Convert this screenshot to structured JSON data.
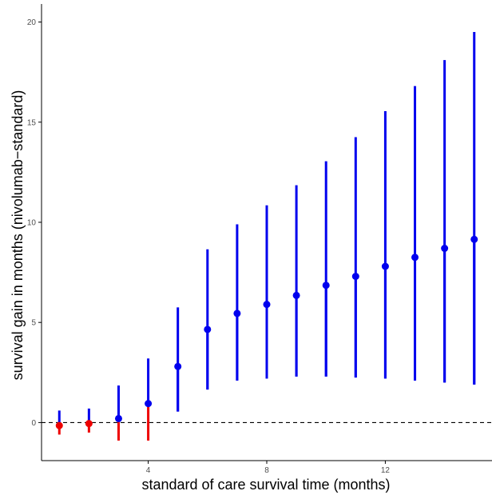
{
  "chart_data": {
    "type": "scatter",
    "xlabel": "standard of care survival time (months)",
    "ylabel": "survival gain in months (nivolumab−standard)",
    "xlim": [
      0.4,
      15.6
    ],
    "ylim": [
      -1.9,
      20.9
    ],
    "x_ticks": [
      4,
      8,
      12
    ],
    "y_ticks": [
      0,
      5,
      10,
      15,
      20
    ],
    "reference_line": {
      "y": 0,
      "style": "dashed"
    },
    "grid": false,
    "colors": {
      "positive": "#0000ee",
      "negative": "#ee0000",
      "axis": "#000000",
      "tick_text": "#4d4d4d"
    },
    "points": [
      {
        "x": 1,
        "y": -0.15,
        "upper_low": -0.15,
        "upper_high": 0.6,
        "lower_low": -0.6,
        "lower_high": -0.15
      },
      {
        "x": 2,
        "y": -0.05,
        "upper_low": -0.05,
        "upper_high": 0.7,
        "lower_low": -0.5,
        "lower_high": -0.05
      },
      {
        "x": 3,
        "y": 0.2,
        "upper_low": 0.2,
        "upper_high": 1.85,
        "lower_low": -0.9,
        "lower_high": 0.2
      },
      {
        "x": 4,
        "y": 0.95,
        "upper_low": 0.95,
        "upper_high": 3.2,
        "lower_low": -0.9,
        "lower_high": 0.95
      },
      {
        "x": 5,
        "y": 2.8,
        "upper_low": 0.55,
        "upper_high": 5.75,
        "lower_low": 0.55,
        "lower_high": 2.8
      },
      {
        "x": 6,
        "y": 4.65,
        "upper_low": 1.65,
        "upper_high": 8.65,
        "lower_low": 1.65,
        "lower_high": 4.65
      },
      {
        "x": 7,
        "y": 5.45,
        "upper_low": 2.1,
        "upper_high": 9.9,
        "lower_low": 2.1,
        "lower_high": 5.45
      },
      {
        "x": 8,
        "y": 5.9,
        "upper_low": 2.2,
        "upper_high": 10.85,
        "lower_low": 2.2,
        "lower_high": 5.9
      },
      {
        "x": 9,
        "y": 6.35,
        "upper_low": 2.3,
        "upper_high": 11.85,
        "lower_low": 2.3,
        "lower_high": 6.35
      },
      {
        "x": 10,
        "y": 6.85,
        "upper_low": 2.3,
        "upper_high": 13.05,
        "lower_low": 2.3,
        "lower_high": 6.85
      },
      {
        "x": 11,
        "y": 7.3,
        "upper_low": 2.25,
        "upper_high": 14.25,
        "lower_low": 2.25,
        "lower_high": 7.3
      },
      {
        "x": 12,
        "y": 7.8,
        "upper_low": 2.2,
        "upper_high": 15.55,
        "lower_low": 2.2,
        "lower_high": 7.8
      },
      {
        "x": 13,
        "y": 8.25,
        "upper_low": 2.1,
        "upper_high": 16.8,
        "lower_low": 2.1,
        "lower_high": 8.25
      },
      {
        "x": 14,
        "y": 8.7,
        "upper_low": 2.0,
        "upper_high": 18.1,
        "lower_low": 2.0,
        "lower_high": 8.7
      },
      {
        "x": 15,
        "y": 9.15,
        "upper_low": 1.9,
        "upper_high": 19.5,
        "lower_low": 1.9,
        "lower_high": 9.15
      }
    ]
  }
}
